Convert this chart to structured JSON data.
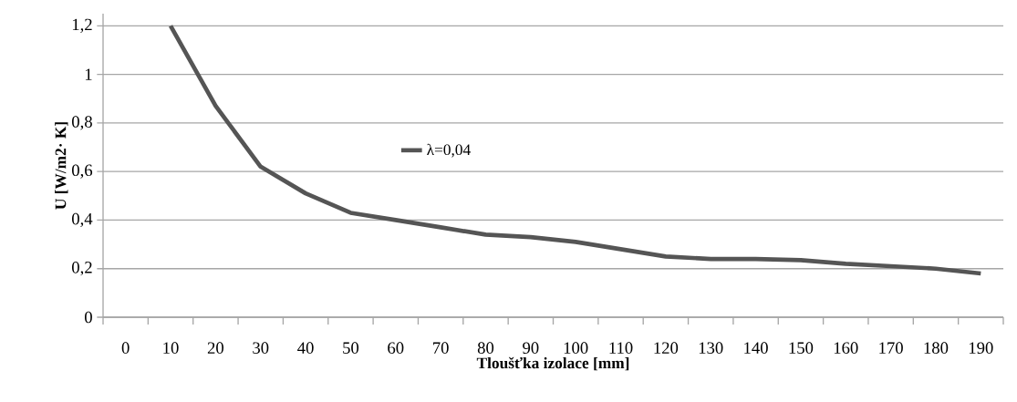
{
  "chart_data": {
    "type": "line",
    "xlabel": "Tloušťka  izolace   [mm]",
    "ylabel": "U  [W/m2· K]",
    "categories": [
      "0",
      "10",
      "20",
      "30",
      "40",
      "50",
      "60",
      "70",
      "80",
      "90",
      "100",
      "110",
      "120",
      "130",
      "140",
      "150",
      "160",
      "170",
      "180",
      "190"
    ],
    "series": [
      {
        "name": "λ=0,04",
        "color": "#555555",
        "values": [
          null,
          1.2,
          0.87,
          0.62,
          0.51,
          0.43,
          0.4,
          0.37,
          0.34,
          0.33,
          0.31,
          0.28,
          0.25,
          0.24,
          0.24,
          0.235,
          0.22,
          0.21,
          0.2,
          0.18
        ]
      }
    ],
    "ylim": [
      0,
      1.25
    ],
    "yticks": [
      0,
      {
        "value": 0.2,
        "label": "0,2"
      },
      {
        "value": 0.4,
        "label": "0,4"
      },
      {
        "value": 0.6,
        "label": "0,6"
      },
      {
        "value": 0.8,
        "label": "0,8"
      },
      1,
      {
        "value": 1.2,
        "label": "1,2"
      }
    ],
    "grid": "y",
    "legend": "center",
    "marker": "none",
    "line_style": "solid"
  }
}
